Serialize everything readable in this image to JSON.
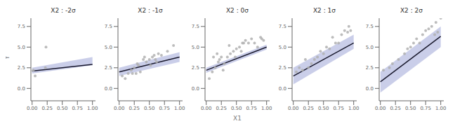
{
  "chart_data": [
    {
      "type": "scatter",
      "title": "X2 : -2σ",
      "ylabel": "Y",
      "xlim": [
        -0.02,
        1.05
      ],
      "xticks": [
        {
          "value": 0,
          "label": "0.00"
        },
        0.25,
        {
          "value": 0.5,
          "label": "0.50"
        },
        0.75,
        {
          "value": 1,
          "label": "1.00"
        }
      ],
      "ylim": [
        -1.5,
        8.5
      ],
      "yticks": [
        {
          "value": 0,
          "label": "0.0"
        },
        2.5,
        {
          "value": 5,
          "label": "5.0"
        },
        7.5
      ],
      "grid": false,
      "series": [
        {
          "type": "area",
          "color": "#7b84c9",
          "x": [
            0,
            1
          ],
          "lower": [
            1.8,
            2.8
          ],
          "upper": [
            2.5,
            3.8
          ]
        },
        {
          "type": "line",
          "color": "#1a1a2e",
          "x": [
            0,
            1
          ],
          "values": [
            2.1,
            2.9
          ]
        },
        {
          "type": "scatter",
          "color": "#b0b0b0",
          "x": [
            0.02,
            0.05,
            0.22,
            0.23
          ],
          "values": [
            2.2,
            1.5,
            2.5,
            5.0
          ]
        }
      ]
    },
    {
      "type": "scatter",
      "title": "X2 : -1σ",
      "xlim": [
        -0.02,
        1.05
      ],
      "xticks": [
        {
          "value": 0,
          "label": "0.00"
        },
        0.25,
        {
          "value": 0.5,
          "label": "0.50"
        },
        0.75,
        {
          "value": 1,
          "label": "1.00"
        }
      ],
      "ylim": [
        -1.5,
        8.5
      ],
      "yticks": [
        {
          "value": 0,
          "label": "0.0"
        },
        2.5,
        {
          "value": 5,
          "label": "5.0"
        },
        7.5
      ],
      "grid": false,
      "series": [
        {
          "type": "area",
          "color": "#7b84c9",
          "x": [
            0,
            1
          ],
          "lower": [
            1.5,
            3.2
          ],
          "upper": [
            2.5,
            4.4
          ]
        },
        {
          "type": "line",
          "color": "#1a1a2e",
          "x": [
            0,
            1
          ],
          "values": [
            2.0,
            3.8
          ]
        },
        {
          "type": "scatter",
          "color": "#b0b0b0",
          "x": [
            0.05,
            0.1,
            0.15,
            0.2,
            0.22,
            0.25,
            0.28,
            0.3,
            0.32,
            0.35,
            0.4,
            0.42,
            0.45,
            0.5,
            0.52,
            0.55,
            0.58,
            0.6,
            0.62,
            0.65,
            0.7,
            0.8,
            0.9
          ],
          "values": [
            1.5,
            1.2,
            1.8,
            2.2,
            1.8,
            2.5,
            1.8,
            3.0,
            2.8,
            2.0,
            3.5,
            3.8,
            3.2,
            3.5,
            2.8,
            3.8,
            4.0,
            3.5,
            3.2,
            4.2,
            4.0,
            4.5,
            5.2
          ]
        }
      ]
    },
    {
      "type": "scatter",
      "title": "X2 : 0σ",
      "xlabel": "X1",
      "xlim": [
        -0.02,
        1.05
      ],
      "xticks": [
        {
          "value": 0,
          "label": "0.00"
        },
        0.25,
        {
          "value": 0.5,
          "label": "0.50"
        },
        0.75,
        {
          "value": 1,
          "label": "1.00"
        }
      ],
      "ylim": [
        -1.5,
        8.5
      ],
      "yticks": [
        {
          "value": 0,
          "label": "0.0"
        },
        2.5,
        {
          "value": 5,
          "label": "5.0"
        },
        7.5
      ],
      "grid": false,
      "series": [
        {
          "type": "area",
          "color": "#7b84c9",
          "x": [
            0,
            1
          ],
          "lower": [
            1.9,
            4.7
          ],
          "upper": [
            2.5,
            5.3
          ]
        },
        {
          "type": "line",
          "color": "#1a1a2e",
          "x": [
            0,
            1
          ],
          "values": [
            2.2,
            5.0
          ]
        },
        {
          "type": "scatter",
          "color": "#b0b0b0",
          "x": [
            0.05,
            0.1,
            0.12,
            0.15,
            0.18,
            0.2,
            0.22,
            0.25,
            0.28,
            0.3,
            0.35,
            0.38,
            0.4,
            0.45,
            0.48,
            0.5,
            0.55,
            0.58,
            0.6,
            0.62,
            0.65,
            0.7,
            0.75,
            0.8,
            0.85,
            0.9,
            0.92,
            0.95
          ],
          "values": [
            1.2,
            2.0,
            3.8,
            2.5,
            4.2,
            3.2,
            3.5,
            3.8,
            2.2,
            3.0,
            3.8,
            5.2,
            4.2,
            4.5,
            3.8,
            4.8,
            5.0,
            4.5,
            5.5,
            5.5,
            5.8,
            5.5,
            6.0,
            5.5,
            5.0,
            6.2,
            6.0,
            5.8
          ]
        }
      ]
    },
    {
      "type": "scatter",
      "title": "X2 : 1σ",
      "xlim": [
        -0.02,
        1.05
      ],
      "xticks": [
        {
          "value": 0,
          "label": "0.00"
        },
        0.25,
        {
          "value": 0.5,
          "label": "0.50"
        },
        0.75,
        {
          "value": 1,
          "label": "1.00"
        }
      ],
      "ylim": [
        -1.5,
        8.5
      ],
      "yticks": [
        {
          "value": 0,
          "label": "0.0"
        },
        2.5,
        {
          "value": 5,
          "label": "5.0"
        },
        7.5
      ],
      "grid": false,
      "series": [
        {
          "type": "area",
          "color": "#7b84c9",
          "x": [
            0,
            1
          ],
          "lower": [
            0.5,
            4.8
          ],
          "upper": [
            2.5,
            6.5
          ]
        },
        {
          "type": "line",
          "color": "#1a1a2e",
          "x": [
            0,
            1
          ],
          "values": [
            1.5,
            5.5
          ]
        },
        {
          "type": "scatter",
          "color": "#b0b0b0",
          "x": [
            0.05,
            0.1,
            0.15,
            0.2,
            0.25,
            0.3,
            0.35,
            0.4,
            0.45,
            0.5,
            0.55,
            0.6,
            0.65,
            0.7,
            0.75,
            0.8,
            0.85,
            0.9,
            0.92,
            0.95
          ],
          "values": [
            2.0,
            2.5,
            2.2,
            3.5,
            2.5,
            3.0,
            3.5,
            3.8,
            4.5,
            4.2,
            5.0,
            4.8,
            6.2,
            5.5,
            5.5,
            6.5,
            7.0,
            6.8,
            7.5,
            7.0
          ]
        }
      ]
    },
    {
      "type": "scatter",
      "title": "X2 : 2σ",
      "xlim": [
        -0.02,
        1.05
      ],
      "xticks": [
        {
          "value": 0,
          "label": "0.00"
        },
        0.25,
        {
          "value": 0.5,
          "label": "0.50"
        },
        0.75,
        {
          "value": 1,
          "label": "1.00"
        }
      ],
      "ylim": [
        -1.5,
        8.5
      ],
      "yticks": [
        {
          "value": 0,
          "label": "0.0"
        },
        2.5,
        {
          "value": 5,
          "label": "5.0"
        },
        7.5
      ],
      "grid": false,
      "series": [
        {
          "type": "area",
          "color": "#7b84c9",
          "x": [
            0,
            1
          ],
          "lower": [
            -0.5,
            5.0
          ],
          "upper": [
            2.0,
            7.5
          ]
        },
        {
          "type": "line",
          "color": "#1a1a2e",
          "x": [
            0,
            1
          ],
          "values": [
            0.8,
            6.3
          ]
        },
        {
          "type": "scatter",
          "color": "#b0b0b0",
          "x": [
            0.05,
            0.15,
            0.2,
            0.3,
            0.4,
            0.45,
            0.5,
            0.55,
            0.6,
            0.65,
            0.7,
            0.75,
            0.8,
            0.85,
            0.9,
            0.92,
            0.95,
            1.0
          ],
          "values": [
            2.2,
            2.5,
            3.0,
            3.5,
            4.2,
            4.8,
            5.0,
            5.5,
            6.0,
            5.5,
            6.5,
            7.0,
            7.2,
            7.5,
            6.5,
            8.0,
            6.8,
            8.5
          ]
        }
      ]
    }
  ]
}
